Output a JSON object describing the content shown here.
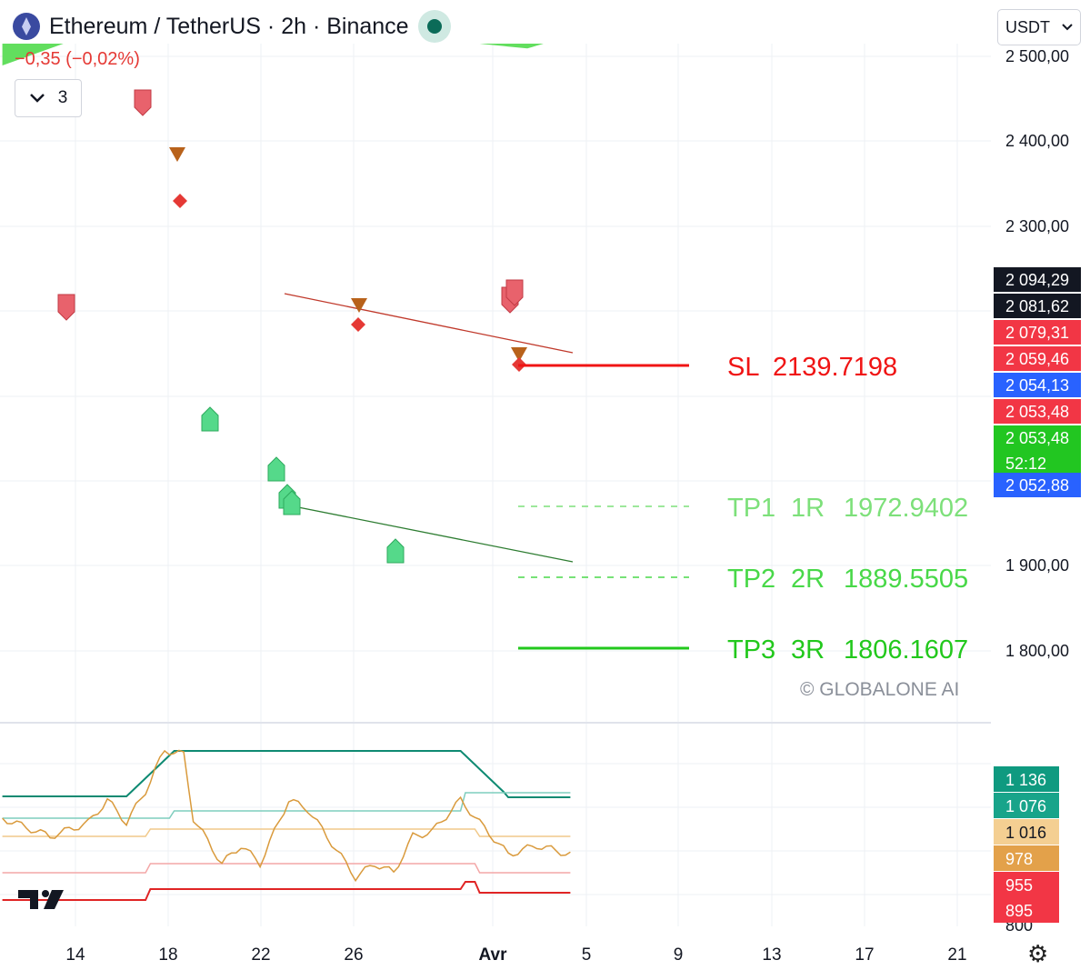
{
  "header": {
    "title": "Ethereum / TetherUS · 2h · Binance",
    "change": "−0,35 (−0,02%)",
    "indicator_count": "3",
    "currency": "USDT"
  },
  "chart_data": {
    "type": "candlestick",
    "x_ticks": [
      "14",
      "18",
      "22",
      "26",
      "Avr",
      "5",
      "9",
      "13",
      "17",
      "21"
    ],
    "y_ticks": [
      "2 500,00",
      "2 400,00",
      "2 300,00",
      "1 900,00",
      "1 800,00"
    ],
    "price_badges": [
      {
        "label": "2 094,29",
        "color": "#131722"
      },
      {
        "label": "2 081,62",
        "color": "#131722"
      },
      {
        "label": "2 079,31",
        "color": "#f23645"
      },
      {
        "label": "2 059,46",
        "color": "#f23645"
      },
      {
        "label": "2 054,13",
        "color": "#2962ff"
      },
      {
        "label": "2 053,48",
        "color": "#f23645"
      },
      {
        "label": "2 053,48",
        "color": "#22c621",
        "sub": "52:12"
      },
      {
        "label": "2 052,88",
        "color": "#2962ff"
      }
    ],
    "levels": [
      {
        "name": "SL",
        "r": "",
        "value": "2139.7198",
        "color": "#f01414"
      },
      {
        "name": "TP1",
        "r": "1R",
        "value": "1972.9402",
        "color": "#7de07a"
      },
      {
        "name": "TP2",
        "r": "2R",
        "value": "1889.5505",
        "color": "#48d848"
      },
      {
        "name": "TP3",
        "r": "3R",
        "value": "1806.1607",
        "color": "#22c81c"
      }
    ],
    "watermark": "© GLOBALONE AI",
    "lower_pane": {
      "y_ticks": [
        "800"
      ],
      "badges": [
        {
          "label": "1 136",
          "color": "#0f9a80"
        },
        {
          "label": "1 076",
          "color": "#18a48a"
        },
        {
          "label": "1 016",
          "color": "#f4cf92"
        },
        {
          "label": "978",
          "color": "#e3a14a"
        },
        {
          "label": "955",
          "color": "#f23645"
        },
        {
          "label": "895",
          "color": "#f23645"
        }
      ]
    }
  }
}
